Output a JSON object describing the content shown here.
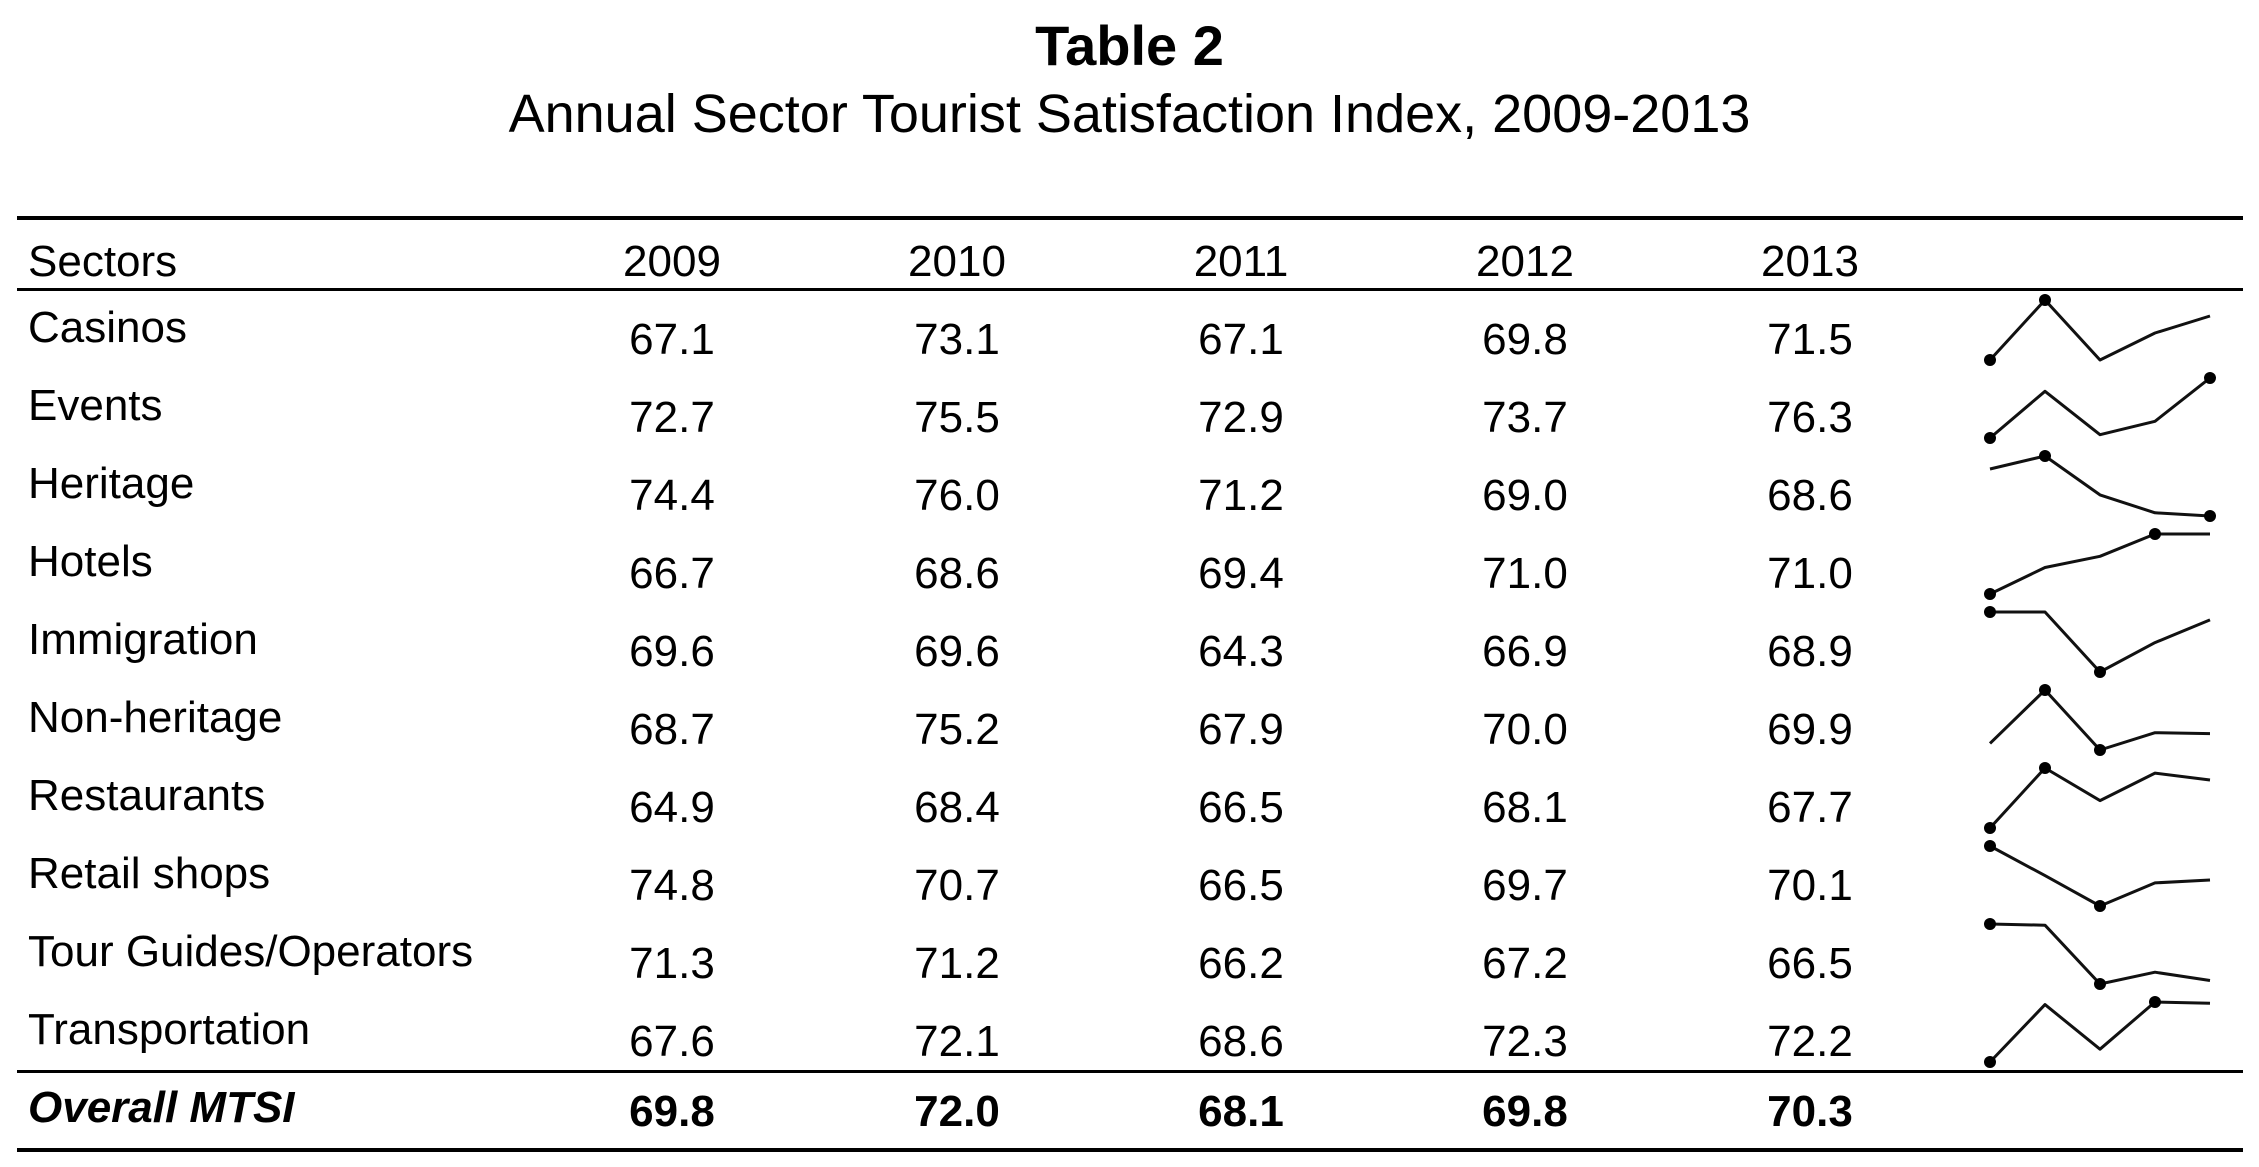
{
  "title": "Table 2",
  "subtitle": "Annual Sector Tourist Satisfaction Index, 2009-2013",
  "table": {
    "header": {
      "sector_label": "Sectors",
      "years": [
        "2009",
        "2010",
        "2011",
        "2012",
        "2013"
      ]
    },
    "rows": [
      {
        "sector": "Casinos",
        "values": [
          "67.1",
          "73.1",
          "67.1",
          "69.8",
          "71.5"
        ]
      },
      {
        "sector": "Events",
        "values": [
          "72.7",
          "75.5",
          "72.9",
          "73.7",
          "76.3"
        ]
      },
      {
        "sector": "Heritage",
        "values": [
          "74.4",
          "76.0",
          "71.2",
          "69.0",
          "68.6"
        ]
      },
      {
        "sector": "Hotels",
        "values": [
          "66.7",
          "68.6",
          "69.4",
          "71.0",
          "71.0"
        ]
      },
      {
        "sector": "Immigration",
        "values": [
          "69.6",
          "69.6",
          "64.3",
          "66.9",
          "68.9"
        ]
      },
      {
        "sector": "Non-heritage",
        "values": [
          "68.7",
          "75.2",
          "67.9",
          "70.0",
          "69.9"
        ]
      },
      {
        "sector": "Restaurants",
        "values": [
          "64.9",
          "68.4",
          "66.5",
          "68.1",
          "67.7"
        ]
      },
      {
        "sector": "Retail shops",
        "values": [
          "74.8",
          "70.7",
          "66.5",
          "69.7",
          "70.1"
        ]
      },
      {
        "sector": "Tour Guides/Operators",
        "values": [
          "71.3",
          "71.2",
          "66.2",
          "67.2",
          "66.5"
        ]
      },
      {
        "sector": "Transportation",
        "values": [
          "67.6",
          "72.1",
          "68.6",
          "72.3",
          "72.2"
        ]
      }
    ],
    "overall": {
      "sector": "Overall MTSI",
      "values": [
        "69.8",
        "72.0",
        "68.1",
        "69.8",
        "70.3"
      ]
    }
  }
}
